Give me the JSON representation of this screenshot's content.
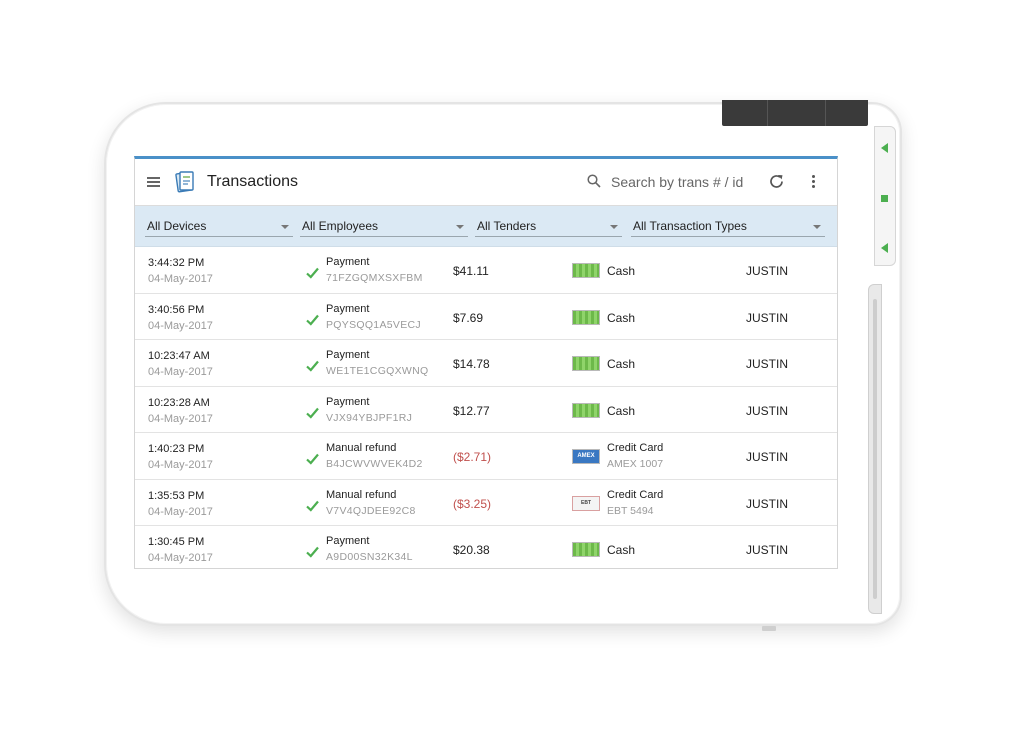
{
  "app": {
    "title": "Transactions",
    "search_placeholder": "Search by trans # / id"
  },
  "filters": {
    "devices": "All Devices",
    "employees": "All Employees",
    "tenders": "All Tenders",
    "types": "All Transaction Types"
  },
  "transactions": [
    {
      "time": "3:44:32 PM",
      "date": "04-May-2017",
      "type": "Payment",
      "id": "71FZGQMXSXFBM",
      "amount": "$41.11",
      "tender": "Cash",
      "tender_sub": "",
      "tender_icon": "cash-icon",
      "employee": "JUSTIN"
    },
    {
      "time": "3:40:56 PM",
      "date": "04-May-2017",
      "type": "Payment",
      "id": "PQYSQQ1A5VECJ",
      "amount": "$7.69",
      "tender": "Cash",
      "tender_sub": "",
      "tender_icon": "cash-icon",
      "employee": "JUSTIN"
    },
    {
      "time": "10:23:47 AM",
      "date": "04-May-2017",
      "type": "Payment",
      "id": "WE1TE1CGQXWNQ",
      "amount": "$14.78",
      "tender": "Cash",
      "tender_sub": "",
      "tender_icon": "cash-icon",
      "employee": "JUSTIN"
    },
    {
      "time": "10:23:28 AM",
      "date": "04-May-2017",
      "type": "Payment",
      "id": "VJX94YBJPF1RJ",
      "amount": "$12.77",
      "tender": "Cash",
      "tender_sub": "",
      "tender_icon": "cash-icon",
      "employee": "JUSTIN"
    },
    {
      "time": "1:40:23 PM",
      "date": "04-May-2017",
      "type": "Manual refund",
      "id": "B4JCWVWVEK4D2",
      "amount": "($2.71)",
      "tender": "Credit Card",
      "tender_sub": "AMEX 1007",
      "tender_icon": "amex-icon",
      "employee": "JUSTIN"
    },
    {
      "time": "1:35:53 PM",
      "date": "04-May-2017",
      "type": "Manual refund",
      "id": "V7V4QJDEE92C8",
      "amount": "($3.25)",
      "tender": "Credit Card",
      "tender_sub": "EBT 5494",
      "tender_icon": "ebt-icon",
      "employee": "JUSTIN"
    },
    {
      "time": "1:30:45 PM",
      "date": "04-May-2017",
      "type": "Payment",
      "id": "A9D00SN32K34L",
      "amount": "$20.38",
      "tender": "Cash",
      "tender_sub": "",
      "tender_icon": "cash-icon",
      "employee": "JUSTIN"
    }
  ],
  "icon_text": {
    "amex": "AMEX",
    "ebt": "EBT"
  },
  "colors": {
    "accent": "#4a90c8",
    "filter_bg": "#dbe9f4",
    "check": "#4caf50",
    "refund": "#c0504d"
  }
}
